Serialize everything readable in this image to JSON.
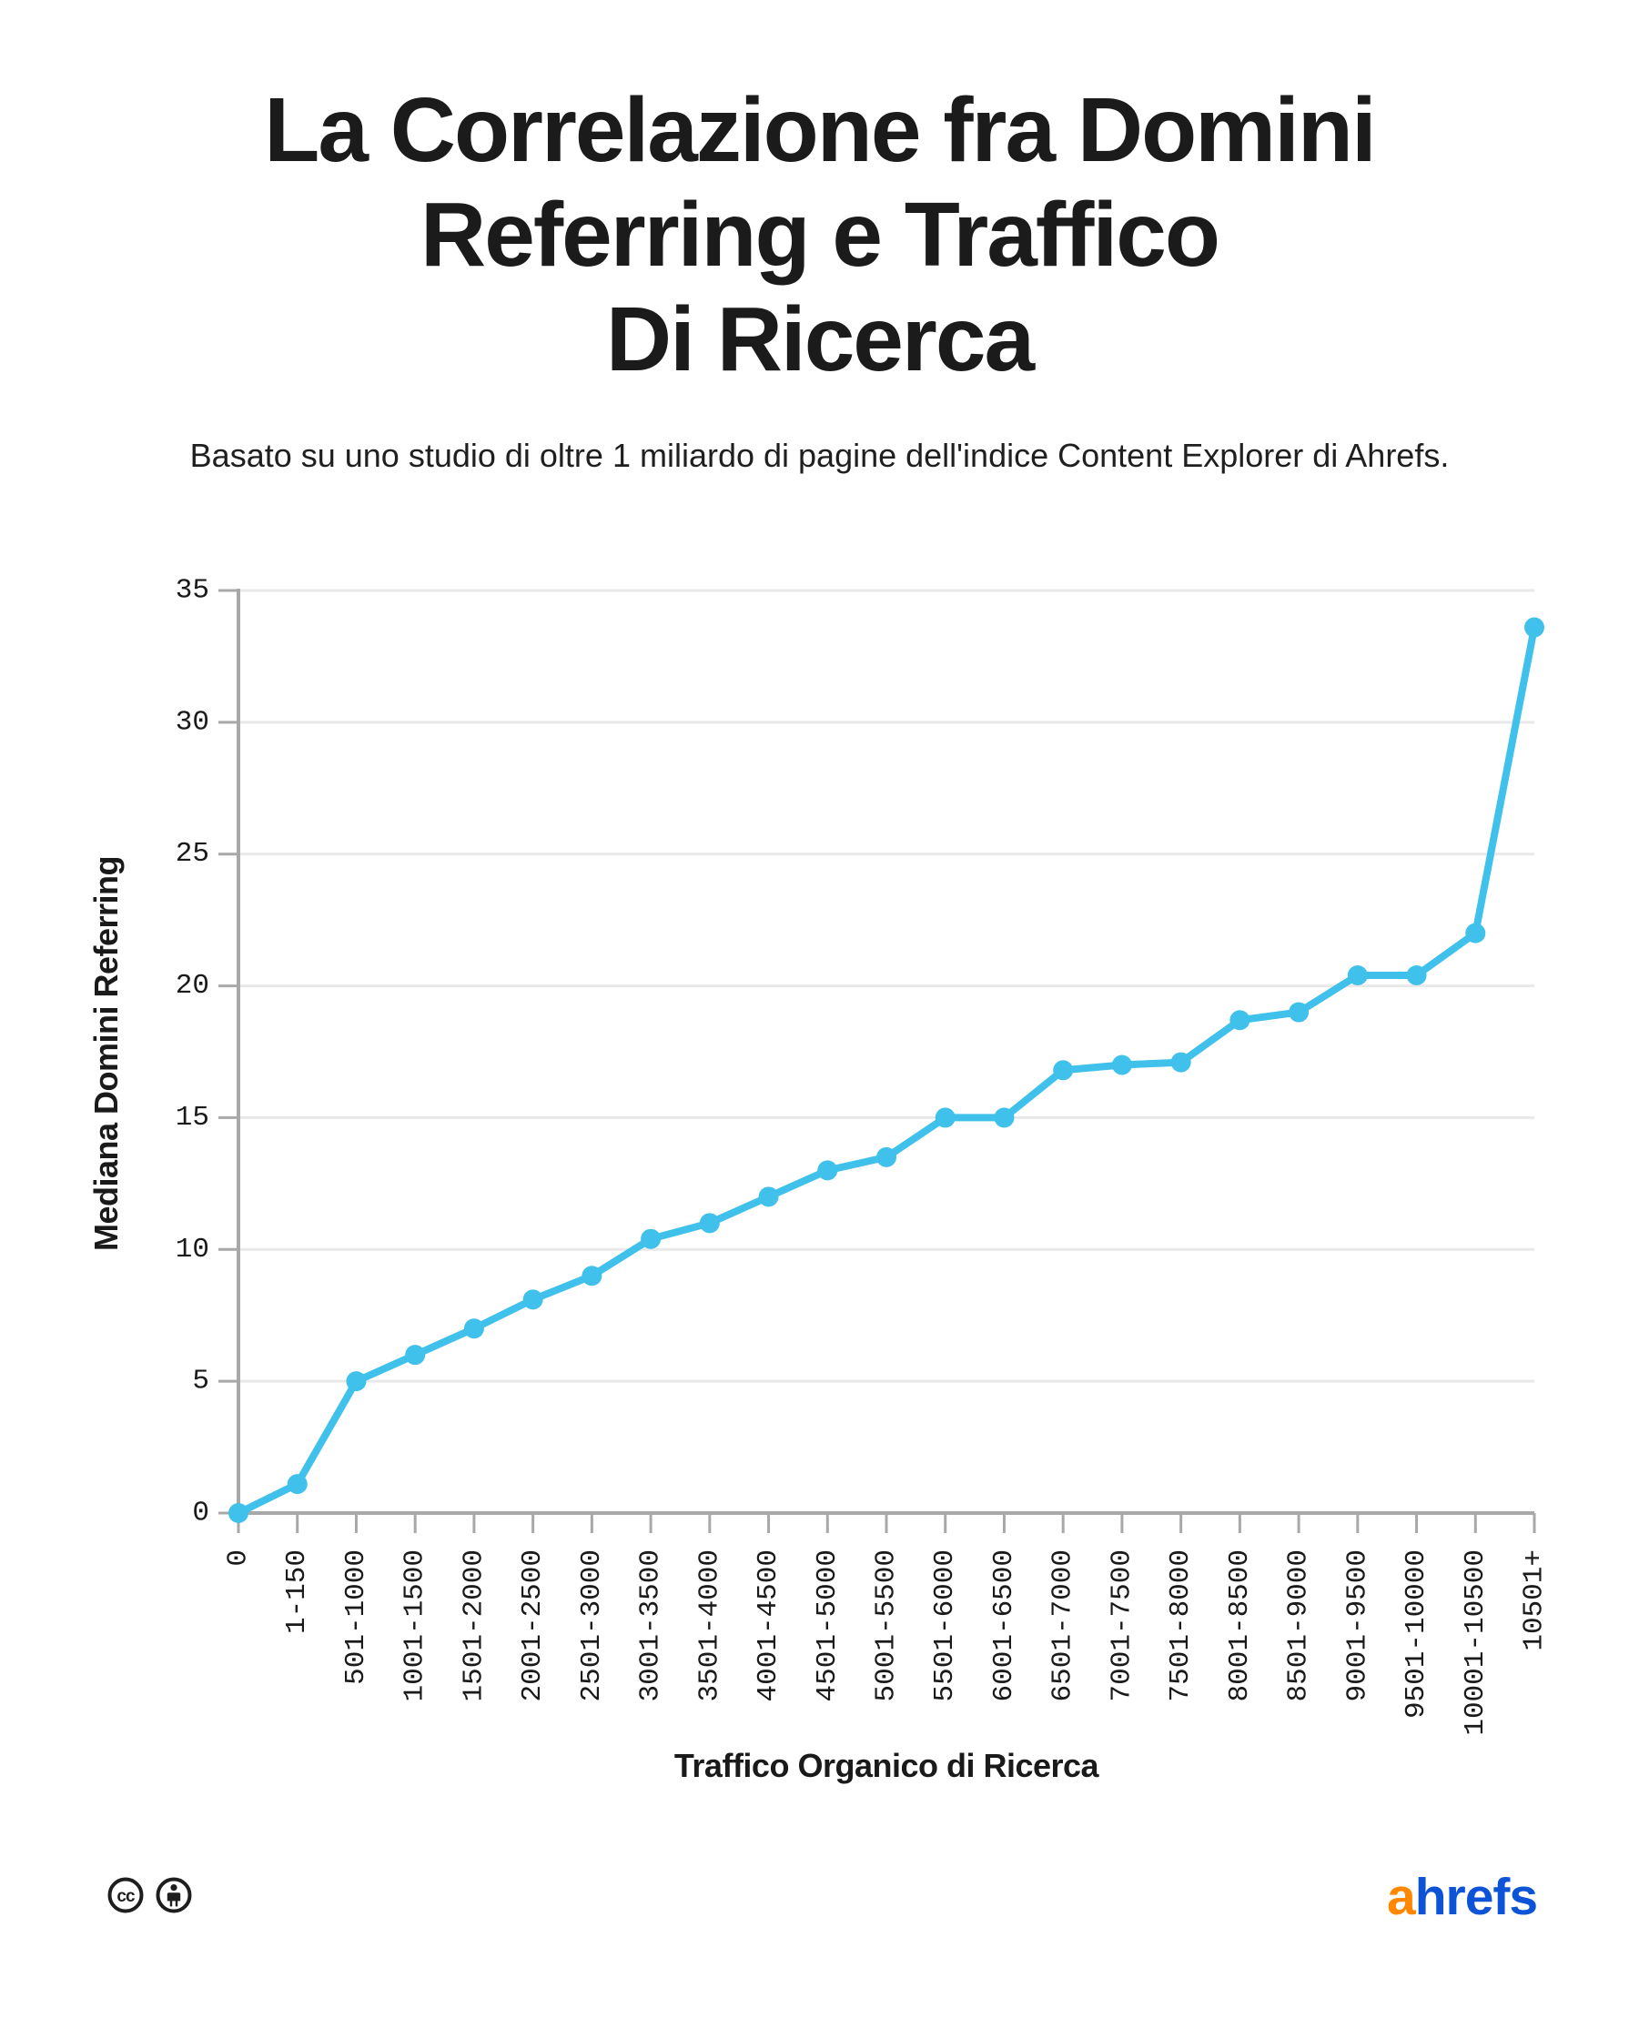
{
  "header": {
    "title_lines": [
      "La Correlazione fra Domini",
      "Referring e Traffico",
      "Di Ricerca"
    ],
    "subtitle": "Basato su uno studio di oltre 1 miliardo di pagine dell'indice Content Explorer di Ahrefs."
  },
  "chart_data": {
    "type": "line",
    "categories": [
      "0",
      "1-150",
      "501-1000",
      "1001-1500",
      "1501-2000",
      "2001-2500",
      "2501-3000",
      "3001-3500",
      "3501-4000",
      "4001-4500",
      "4501-5000",
      "5001-5500",
      "5501-6000",
      "6001-6500",
      "6501-7000",
      "7001-7500",
      "7501-8000",
      "8001-8500",
      "8501-9000",
      "9001-9500",
      "9501-10000",
      "10001-10500",
      "10501+"
    ],
    "values": [
      0,
      1.1,
      5,
      6,
      7,
      8.1,
      9,
      10.4,
      11,
      12,
      13,
      13.5,
      15,
      15,
      16.8,
      17,
      17.1,
      18.7,
      19,
      20.4,
      20.4,
      22,
      33.6
    ],
    "xlabel": "Traffico Organico di Ricerca",
    "ylabel": "Mediana Domini Referring",
    "ylim": [
      0,
      35
    ],
    "yticks": [
      0,
      5,
      10,
      15,
      20,
      25,
      30,
      35
    ],
    "grid": true,
    "legend_position": "none",
    "line_color": "#3fc1eb",
    "axis_color": "#a8a8a8",
    "grid_color": "#e9e9e9",
    "tick_text_color": "#1a1a1a"
  },
  "footer": {
    "license": {
      "icons": [
        "cc-icon",
        "cc-by-icon"
      ],
      "icon_color": "#1e1e1e"
    },
    "logo": {
      "prefix": "a",
      "rest": "hrefs",
      "prefix_color": "#ff8800",
      "rest_color": "#0c53d7"
    }
  }
}
